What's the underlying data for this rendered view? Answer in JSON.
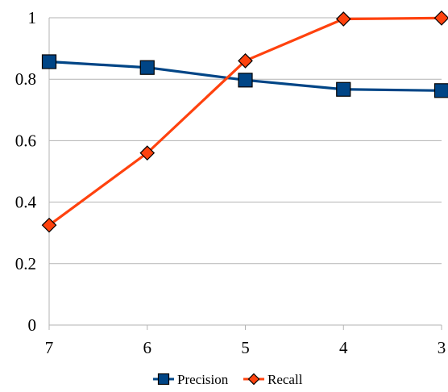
{
  "chart_data": {
    "type": "line",
    "title": "",
    "xlabel": "",
    "ylabel": "",
    "categories": [
      "7",
      "6",
      "5",
      "4",
      "3"
    ],
    "ylim": [
      0,
      1
    ],
    "yticks": [
      "0",
      "0.2",
      "0.4",
      "0.6",
      "0.8",
      "1"
    ],
    "grid": true,
    "legend_position": "bottom",
    "series": [
      {
        "name": "Precision",
        "values": [
          0.857,
          0.838,
          0.797,
          0.767,
          0.763
        ],
        "color": "#004586",
        "marker": "square"
      },
      {
        "name": "Recall",
        "values": [
          0.325,
          0.56,
          0.86,
          0.996,
          0.999
        ],
        "color": "#ff420e",
        "marker": "diamond"
      }
    ]
  }
}
